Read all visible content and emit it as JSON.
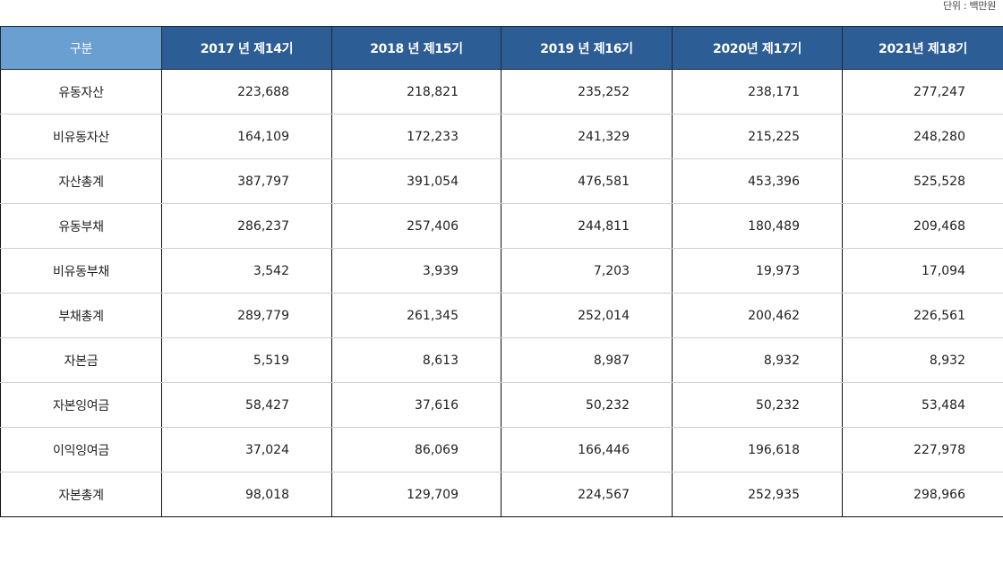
{
  "unit_label": "단위 : 백만원",
  "table": {
    "headers": [
      "구분",
      "2017 년 제14기",
      "2018 년 제15기",
      "2019 년 제16기",
      "2020년 제17기",
      "2021년 제18기"
    ],
    "rows": [
      {
        "label": "유동자산",
        "values": [
          "223,688",
          "218,821",
          "235,252",
          "238,171",
          "277,247"
        ]
      },
      {
        "label": "비유동자산",
        "values": [
          "164,109",
          "172,233",
          "241,329",
          "215,225",
          "248,280"
        ]
      },
      {
        "label": "자산총계",
        "values": [
          "387,797",
          "391,054",
          "476,581",
          "453,396",
          "525,528"
        ]
      },
      {
        "label": "유동부채",
        "values": [
          "286,237",
          "257,406",
          "244,811",
          "180,489",
          "209,468"
        ]
      },
      {
        "label": "비유동부채",
        "values": [
          "3,542",
          "3,939",
          "7,203",
          "19,973",
          "17,094"
        ]
      },
      {
        "label": "부채총계",
        "values": [
          "289,779",
          "261,345",
          "252,014",
          "200,462",
          "226,561"
        ]
      },
      {
        "label": "자본금",
        "values": [
          "5,519",
          "8,613",
          "8,987",
          "8,932",
          "8,932"
        ]
      },
      {
        "label": "자본잉여금",
        "values": [
          "58,427",
          "37,616",
          "50,232",
          "50,232",
          "53,484"
        ]
      },
      {
        "label": "이익잉여금",
        "values": [
          "37,024",
          "86,069",
          "166,446",
          "196,618",
          "227,978"
        ]
      },
      {
        "label": "자본총계",
        "values": [
          "98,018",
          "129,709",
          "224,567",
          "252,935",
          "298,966"
        ]
      }
    ]
  }
}
